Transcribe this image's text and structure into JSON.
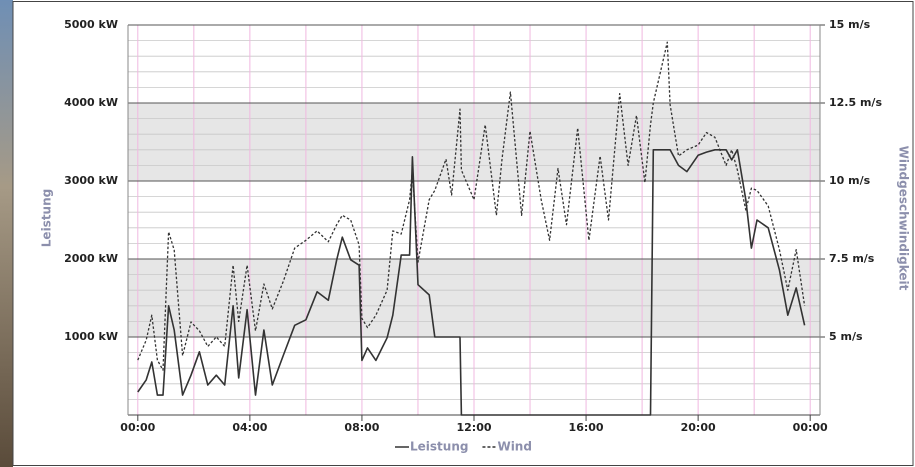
{
  "chart_data": {
    "type": "line",
    "x": [
      0.0,
      0.3,
      0.5,
      0.7,
      0.9,
      1.1,
      1.3,
      1.6,
      1.9,
      2.2,
      2.5,
      2.8,
      3.1,
      3.4,
      3.6,
      3.9,
      4.2,
      4.5,
      4.8,
      5.2,
      5.6,
      6.0,
      6.4,
      6.8,
      7.1,
      7.3,
      7.6,
      7.9,
      8.0,
      8.2,
      8.5,
      8.9,
      9.1,
      9.4,
      9.7,
      9.8,
      10.0,
      10.4,
      10.6,
      11.0,
      11.2,
      11.5,
      11.55,
      12.0,
      12.4,
      12.8,
      13.0,
      13.3,
      13.7,
      14.0,
      14.4,
      14.7,
      15.0,
      15.3,
      15.7,
      16.1,
      16.5,
      16.8,
      17.2,
      17.5,
      17.8,
      18.1,
      18.3,
      18.4,
      18.9,
      19.0,
      19.3,
      19.6,
      20.0,
      20.3,
      20.6,
      21.0,
      21.2,
      21.4,
      21.7,
      21.9,
      22.1,
      22.5,
      22.9,
      23.2,
      23.5,
      23.8
    ],
    "series": [
      {
        "name": "Leistung",
        "color": "#333333",
        "dashed": false,
        "values": [
          295,
          450,
          680,
          255,
          255,
          1400,
          1090,
          255,
          510,
          810,
          385,
          510,
          385,
          1400,
          475,
          1350,
          255,
          1090,
          385,
          770,
          1150,
          1220,
          1580,
          1470,
          1990,
          2280,
          1990,
          1920,
          700,
          860,
          700,
          990,
          1280,
          2050,
          2050,
          3310,
          1670,
          1540,
          1000,
          1000,
          1000,
          1000,
          0,
          0,
          0,
          0,
          0,
          0,
          0,
          0,
          0,
          0,
          0,
          0,
          0,
          0,
          0,
          0,
          0,
          0,
          0,
          0,
          0,
          3400,
          3400,
          3400,
          3200,
          3120,
          3330,
          3370,
          3400,
          3400,
          3270,
          3400,
          2760,
          2140,
          2500,
          2400,
          1860,
          1280,
          1630,
          1150
        ]
      },
      {
        "name": "Wind",
        "color": "#333333",
        "dashed": true,
        "axis": "y2",
        "values": [
          4.26,
          4.9,
          5.7,
          4.26,
          3.94,
          8.37,
          7.79,
          4.4,
          5.48,
          5.2,
          4.7,
          5.0,
          4.7,
          7.3,
          5.5,
          7.3,
          5.2,
          6.7,
          5.9,
          6.8,
          7.85,
          8.1,
          8.4,
          8.05,
          8.6,
          8.9,
          8.75,
          7.95,
          5.6,
          5.3,
          5.7,
          6.5,
          8.4,
          8.3,
          9.4,
          10.35,
          7.4,
          9.4,
          9.7,
          10.7,
          9.55,
          12.3,
          10.35,
          9.4,
          11.8,
          8.9,
          10.7,
          12.85,
          8.9,
          11.6,
          9.4,
          8.1,
          10.4,
          8.6,
          11.7,
          8.1,
          10.8,
          8.75,
          12.8,
          10.5,
          12.1,
          9.95,
          11.8,
          12.5,
          14.45,
          12.45,
          10.8,
          11.0,
          11.15,
          11.55,
          11.4,
          10.5,
          11.0,
          10.35,
          9.07,
          9.77,
          9.7,
          9.2,
          7.8,
          6.5,
          7.8,
          6.0
        ]
      }
    ],
    "xlim": [
      -0.35,
      24.35
    ],
    "xticks": [
      {
        "value": 0,
        "label": "00:00"
      },
      {
        "value": 4,
        "label": "04:00"
      },
      {
        "value": 8,
        "label": "08:00"
      },
      {
        "value": 12,
        "label": "12:00"
      },
      {
        "value": 16,
        "label": "16:00"
      },
      {
        "value": 20,
        "label": "20:00"
      },
      {
        "value": 24,
        "label": "00:00"
      }
    ],
    "x_minor_gridlines": [
      2,
      6,
      10,
      14,
      18,
      22
    ],
    "ylim": [
      0,
      5000
    ],
    "yticks": [
      {
        "value": 1000,
        "label": "1000 kW"
      },
      {
        "value": 2000,
        "label": "2000 kW"
      },
      {
        "value": 3000,
        "label": "3000 kW"
      },
      {
        "value": 4000,
        "label": "4000 kW"
      },
      {
        "value": 5000,
        "label": "5000 kW"
      }
    ],
    "y_minor_gridlines": [
      200,
      400,
      600,
      800,
      1200,
      1400,
      1600,
      1800,
      2200,
      2400,
      2600,
      2800,
      3200,
      3400,
      3600,
      3800,
      4200,
      4400,
      4600,
      4800
    ],
    "y2lim": [
      2.5,
      15
    ],
    "y2ticks": [
      {
        "value": 5,
        "label": "5 m/s"
      },
      {
        "value": 7.5,
        "label": "7.5 m/s"
      },
      {
        "value": 10,
        "label": "10 m/s"
      },
      {
        "value": 12.5,
        "label": "12.5 m/s"
      },
      {
        "value": 15,
        "label": "15 m/s"
      }
    ],
    "ylabel": "Leistung",
    "y2label": "Windgeschwindigkeit",
    "grid": true,
    "legend": "bottom"
  }
}
